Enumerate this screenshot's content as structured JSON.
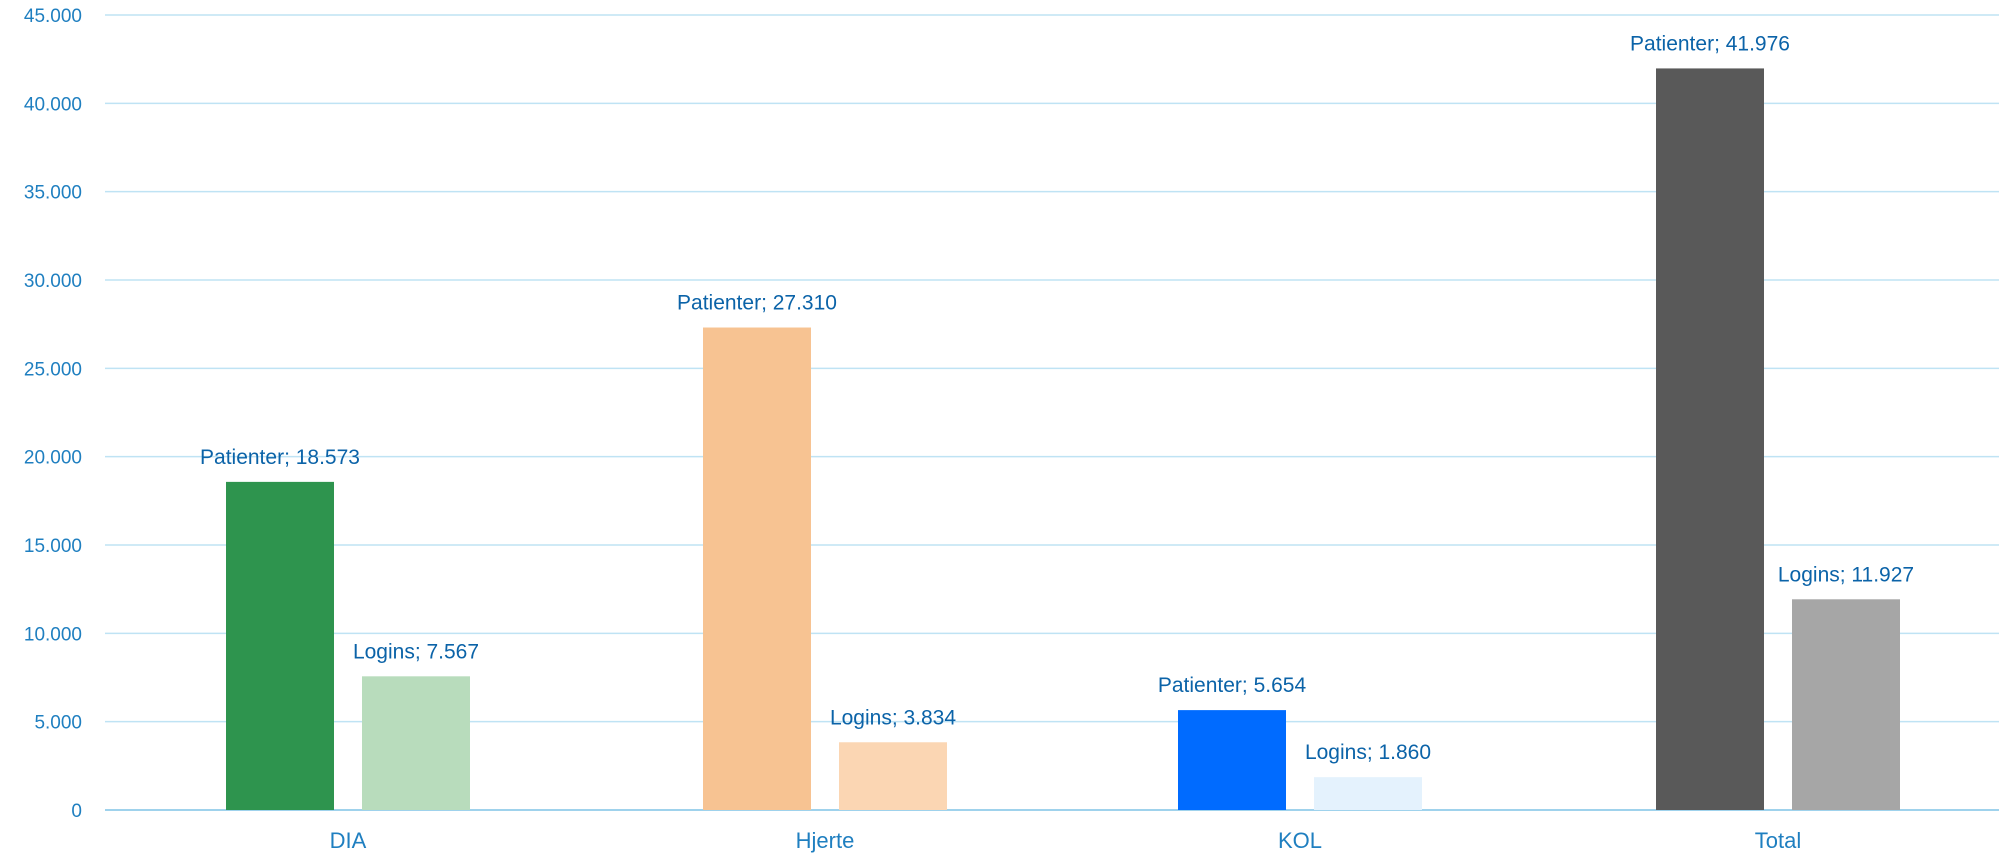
{
  "chart_data": {
    "type": "bar",
    "categories": [
      "DIA",
      "Hjerte",
      "KOL",
      "Total"
    ],
    "series": [
      {
        "name": "Patienter",
        "values": [
          18573,
          27310,
          5654,
          41976
        ]
      },
      {
        "name": "Logins",
        "values": [
          7567,
          3834,
          1860,
          11927
        ]
      }
    ],
    "bar_colors": [
      [
        "#2e944e",
        "#b8dcbc"
      ],
      [
        "#f7c392",
        "#fbd6b3"
      ],
      [
        "#006bff",
        "#e4f2fd"
      ],
      [
        "#595959",
        "#a6a6a6"
      ]
    ],
    "data_labels": [
      [
        "Patienter; 18.573",
        "Logins; 7.567"
      ],
      [
        "Patienter; 27.310",
        "Logins; 3.834"
      ],
      [
        "Patienter; 5.654",
        "Logins; 1.860"
      ],
      [
        "Patienter; 41.976",
        "Logins; 11.927"
      ]
    ],
    "y_ticks": [
      0,
      5000,
      10000,
      15000,
      20000,
      25000,
      30000,
      35000,
      40000,
      45000
    ],
    "y_tick_labels": [
      "0",
      "5.000",
      "10.000",
      "15.000",
      "20.000",
      "25.000",
      "30.000",
      "35.000",
      "40.000",
      "45.000"
    ],
    "ylim": [
      0,
      45000
    ],
    "grid": true,
    "legend": "none",
    "title": "",
    "xlabel": "",
    "ylabel": "",
    "label_color": "#0b63a8",
    "tick_color": "#1f7fc0",
    "grid_color": "#bfe3f4"
  }
}
